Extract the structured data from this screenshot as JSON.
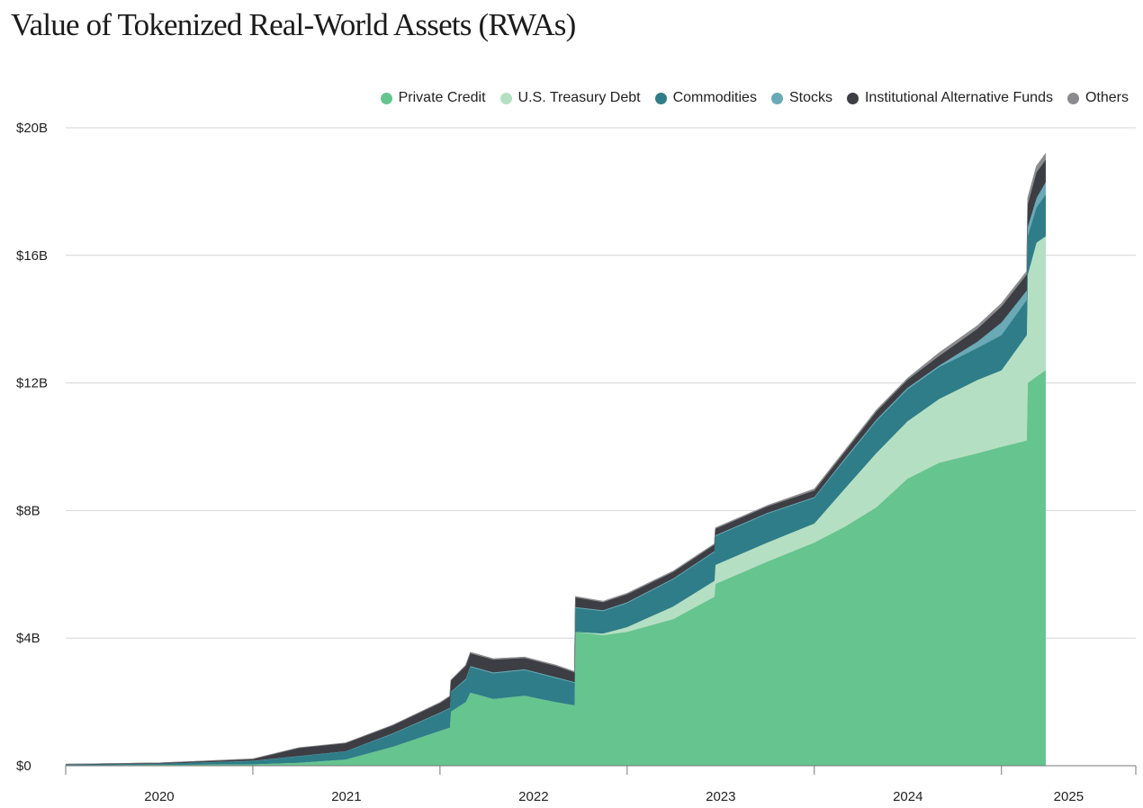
{
  "chart_data": {
    "type": "area",
    "stacked": true,
    "title": "Value of Tokenized Real-World Assets (RWAs)",
    "xlabel": "",
    "ylabel": "",
    "ylim": [
      0,
      20
    ],
    "y_ticks": [
      "$0",
      "$4B",
      "$8B",
      "$12B",
      "$16B",
      "$20B"
    ],
    "y_tick_values": [
      0,
      4,
      8,
      12,
      16,
      20
    ],
    "x_ticks": [
      "2020",
      "2021",
      "2022",
      "2023",
      "2024",
      "2025"
    ],
    "xlim": [
      "2020-01-01",
      "2025-09-20"
    ],
    "grid": "horizontal",
    "legend_position": "top-right",
    "unit": "USD billions",
    "x": [
      "2020-01-01",
      "2020-07-01",
      "2021-01-01",
      "2021-04-01",
      "2021-07-01",
      "2021-10-01",
      "2022-01-01",
      "2022-01-20",
      "2022-01-22",
      "2022-02-20",
      "2022-03-01",
      "2022-04-15",
      "2022-06-15",
      "2022-08-15",
      "2022-09-20",
      "2022-09-22",
      "2022-11-15",
      "2023-01-01",
      "2023-04-01",
      "2023-06-20",
      "2023-06-22",
      "2023-10-01",
      "2024-01-01",
      "2024-03-01",
      "2024-05-01",
      "2024-07-01",
      "2024-09-01",
      "2024-11-15",
      "2025-01-01",
      "2025-02-19",
      "2025-02-21",
      "2025-03-10",
      "2025-03-28"
    ],
    "series": [
      {
        "name": "Private Credit",
        "color": "#66c48f",
        "values": [
          0.02,
          0.03,
          0.05,
          0.1,
          0.2,
          0.6,
          1.1,
          1.2,
          1.7,
          2.0,
          2.3,
          2.1,
          2.2,
          2.0,
          1.9,
          4.2,
          4.1,
          4.2,
          4.6,
          5.3,
          5.7,
          6.4,
          7.0,
          7.5,
          8.1,
          9.0,
          9.5,
          9.8,
          10.0,
          10.2,
          12.0,
          12.2,
          12.4
        ]
      },
      {
        "name": "U.S. Treasury Debt",
        "color": "#b5dfc3",
        "values": [
          0,
          0,
          0,
          0,
          0,
          0,
          0,
          0,
          0,
          0,
          0,
          0,
          0,
          0,
          0,
          0,
          0.05,
          0.15,
          0.4,
          0.5,
          0.6,
          0.6,
          0.6,
          1.2,
          1.7,
          1.8,
          2.0,
          2.3,
          2.4,
          3.3,
          3.4,
          4.2,
          4.2
        ]
      },
      {
        "name": "Commodities",
        "color": "#2e7d88",
        "values": [
          0.02,
          0.04,
          0.1,
          0.2,
          0.25,
          0.4,
          0.55,
          0.6,
          0.6,
          0.7,
          0.8,
          0.8,
          0.8,
          0.75,
          0.7,
          0.75,
          0.7,
          0.75,
          0.85,
          0.9,
          0.9,
          0.9,
          0.8,
          0.9,
          1.0,
          1.0,
          1.0,
          1.0,
          1.1,
          1.1,
          1.2,
          1.1,
          1.3
        ]
      },
      {
        "name": "Stocks",
        "color": "#6aa9b6",
        "values": [
          0,
          0,
          0.01,
          0.01,
          0.01,
          0.02,
          0.02,
          0.02,
          0.02,
          0.03,
          0.03,
          0.03,
          0.03,
          0.03,
          0.03,
          0.03,
          0.03,
          0.03,
          0.03,
          0.03,
          0.03,
          0.03,
          0.03,
          0.05,
          0.05,
          0.05,
          0.05,
          0.2,
          0.4,
          0.3,
          0.3,
          0.3,
          0.4
        ]
      },
      {
        "name": "Institutional Alternative Funds",
        "color": "#3c3e44",
        "values": [
          0.01,
          0.02,
          0.05,
          0.25,
          0.25,
          0.25,
          0.3,
          0.35,
          0.35,
          0.4,
          0.4,
          0.4,
          0.35,
          0.35,
          0.3,
          0.3,
          0.25,
          0.25,
          0.2,
          0.2,
          0.2,
          0.2,
          0.2,
          0.2,
          0.25,
          0.25,
          0.3,
          0.4,
          0.5,
          0.5,
          0.7,
          0.8,
          0.7
        ]
      },
      {
        "name": "Others",
        "color": "#8b8b8d",
        "values": [
          0,
          0,
          0.01,
          0.01,
          0.01,
          0.01,
          0.02,
          0.02,
          0.02,
          0.03,
          0.03,
          0.03,
          0.03,
          0.03,
          0.03,
          0.03,
          0.03,
          0.03,
          0.03,
          0.03,
          0.03,
          0.03,
          0.05,
          0.05,
          0.05,
          0.05,
          0.1,
          0.1,
          0.1,
          0.1,
          0.2,
          0.2,
          0.2
        ]
      }
    ]
  }
}
